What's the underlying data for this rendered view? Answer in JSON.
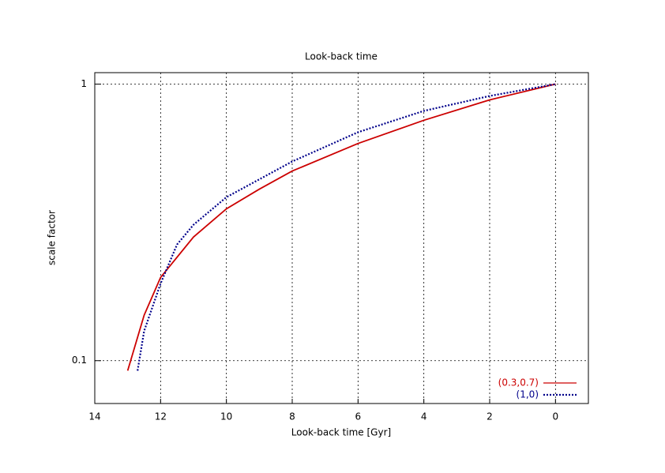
{
  "chart_data": {
    "type": "line",
    "title": "Look-back time",
    "x_label": "Look-back time [Gyr]",
    "y_label": "scale factor",
    "xlim": [
      14,
      -1
    ],
    "xticks": [
      14,
      12,
      10,
      8,
      6,
      4,
      2,
      0
    ],
    "ylim": [
      0.07,
      1.1
    ],
    "yticks": [
      0.1,
      1
    ],
    "y_log": true,
    "grid": true,
    "legend": "bottom-right",
    "series": [
      {
        "name": "(0.3,0.7)",
        "color": "#cc0000",
        "dash": false,
        "x": [
          13,
          12.5,
          12,
          11,
          10,
          9,
          8,
          6,
          4,
          2,
          0
        ],
        "values": [
          0.092,
          0.146,
          0.2,
          0.28,
          0.354,
          0.417,
          0.485,
          0.61,
          0.74,
          0.877,
          1
        ]
      },
      {
        "name": "(1,0)",
        "color": "#00008b",
        "dash": true,
        "x": [
          12.7,
          12.5,
          12,
          11.5,
          11,
          10,
          8,
          6,
          4,
          2,
          0
        ],
        "values": [
          0.092,
          0.128,
          0.19,
          0.263,
          0.31,
          0.39,
          0.525,
          0.67,
          0.8,
          0.906,
          1
        ]
      }
    ]
  }
}
